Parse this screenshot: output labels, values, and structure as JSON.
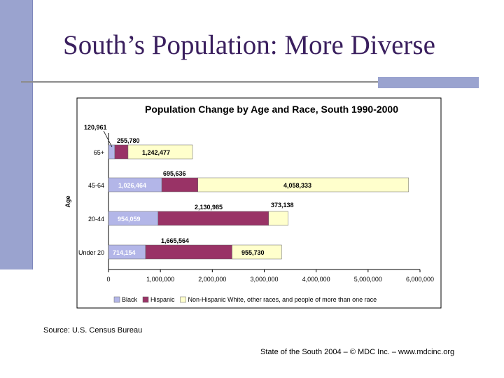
{
  "slide": {
    "title": "South’s Population: More Diverse",
    "source": "Source: U.S. Census Bureau",
    "footer": "State of the South 2004 – © MDC Inc. – www.mdcinc.org",
    "accent_color": "#9aa3cf",
    "title_color": "#3a1f5e"
  },
  "chart_data": {
    "type": "bar",
    "orientation": "horizontal",
    "stacked": true,
    "title": "Population Change by Age and Race, South 1990-2000",
    "ylabel": "Age",
    "xlabel": "",
    "categories": [
      "65+",
      "45-64",
      "20-44",
      "Under 20"
    ],
    "series": [
      {
        "name": "Black",
        "color": "#b3b6e8",
        "values": [
          120961,
          1026464,
          954059,
          714154
        ]
      },
      {
        "name": "Hispanic",
        "color": "#993366",
        "values": [
          255780,
          695636,
          2130985,
          1665564
        ]
      },
      {
        "name": "Non-Hispanic White, other races, and people of more than one race",
        "color": "#ffffcc",
        "values": [
          1242477,
          4058333,
          373138,
          955730
        ]
      }
    ],
    "data_labels": [
      [
        "120,961",
        "255,780",
        "1,242,477"
      ],
      [
        "1,026,464",
        "695,636",
        "4,058,333"
      ],
      [
        "954,059",
        "2,130,985",
        "373,138"
      ],
      [
        "714,154",
        "1,665,564",
        "955,730"
      ]
    ],
    "xlim": [
      0,
      6000000
    ],
    "xticks": [
      0,
      1000000,
      2000000,
      3000000,
      4000000,
      5000000,
      6000000
    ],
    "xtick_labels": [
      "0",
      "1,000,000",
      "2,000,000",
      "3,000,000",
      "4,000,000",
      "5,000,000",
      "6,000,000"
    ],
    "legend_position": "bottom",
    "grid": false
  }
}
